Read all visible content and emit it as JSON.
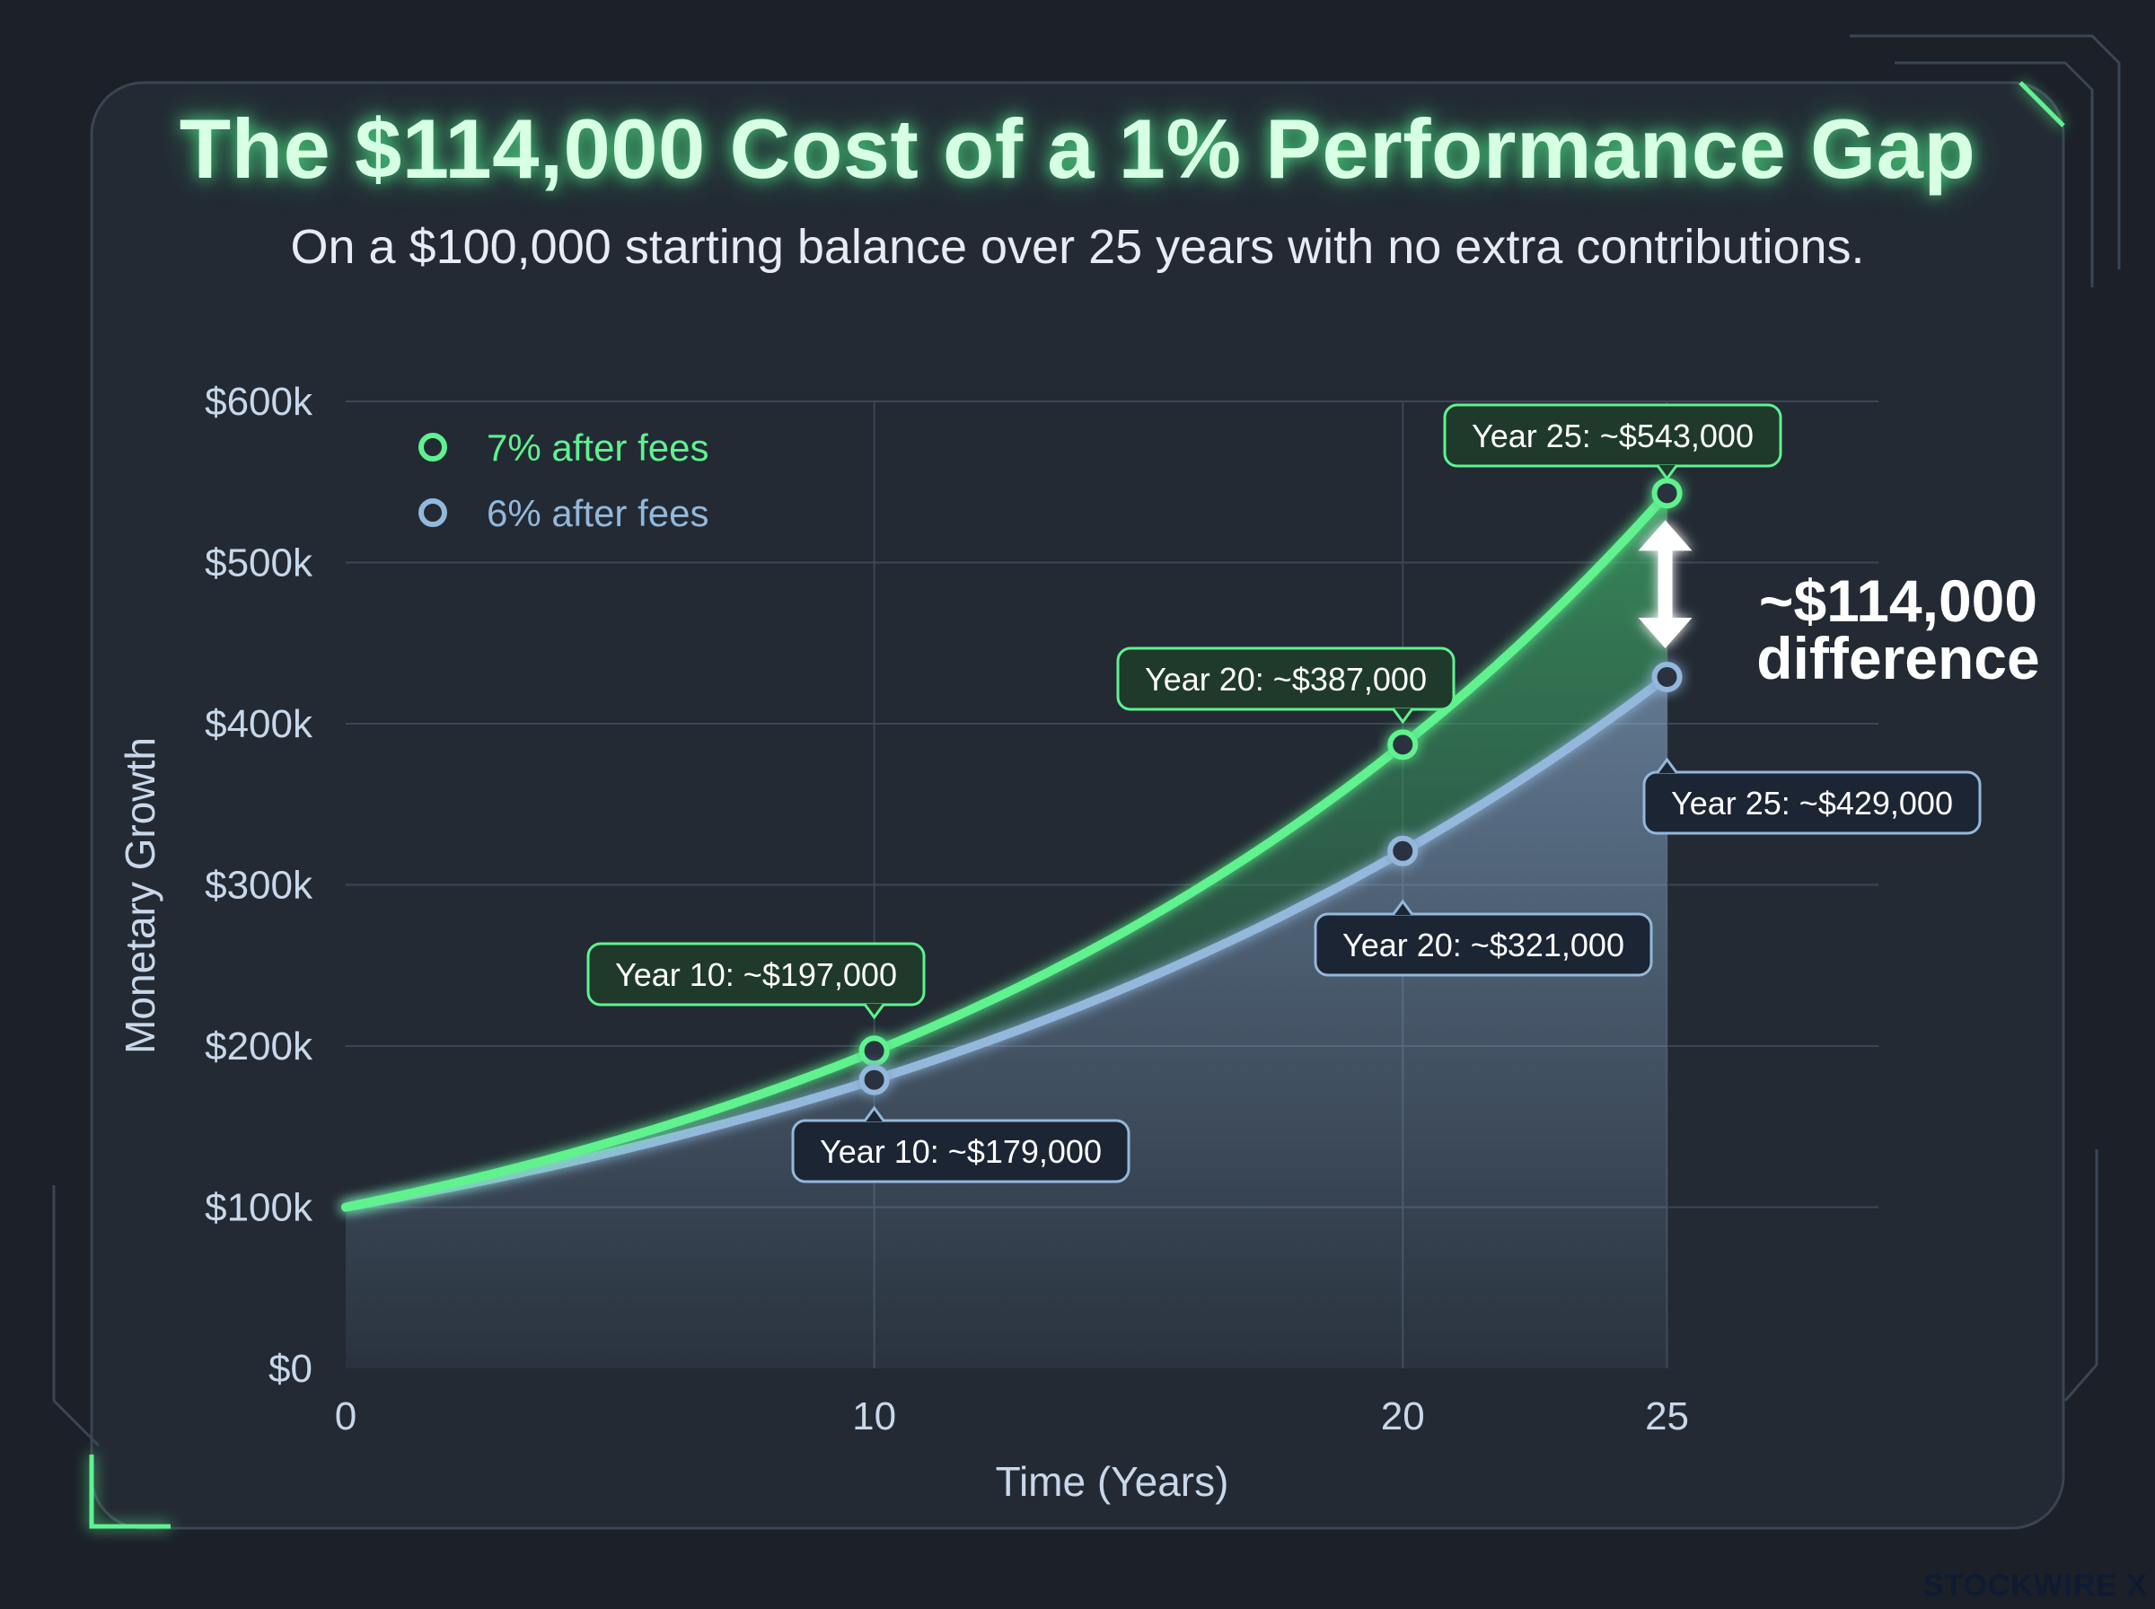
{
  "title": "The $114,000 Cost of a 1% Performance Gap",
  "subtitle": "On a $100,000 starting balance over 25 years with no extra contributions.",
  "brand": "STOCKWIRE X",
  "colors": {
    "background": "#1b2029",
    "panel": "#262c36",
    "series_7": "#5ef28f",
    "series_6": "#93b8dc",
    "grid": "#3c4654"
  },
  "chart_data": {
    "type": "line",
    "xlabel": "Time (Years)",
    "ylabel": "Monetary Growth",
    "xlim": [
      0,
      29
    ],
    "ylim": [
      0,
      600000
    ],
    "x_ticks": [
      0,
      10,
      20,
      25
    ],
    "y_ticks": [
      {
        "value": 0,
        "label": "$0"
      },
      {
        "value": 100000,
        "label": "$100k"
      },
      {
        "value": 200000,
        "label": "$200k"
      },
      {
        "value": 300000,
        "label": "$300k"
      },
      {
        "value": 400000,
        "label": "$400k"
      },
      {
        "value": 500000,
        "label": "$500k"
      },
      {
        "value": 600000,
        "label": "$600k"
      }
    ],
    "grid": true,
    "legend_position": "top-left",
    "series": [
      {
        "name": "7% after fees",
        "rate": 0.07,
        "color": "#5ef28f",
        "start": 100000,
        "markers": [
          {
            "x": 10,
            "y": 197000,
            "label": "Year 10: ~$197,000"
          },
          {
            "x": 20,
            "y": 387000,
            "label": "Year 20: ~$387,000"
          },
          {
            "x": 25,
            "y": 543000,
            "label": "Year 25: ~$543,000"
          }
        ]
      },
      {
        "name": "6% after fees",
        "rate": 0.06,
        "color": "#93b8dc",
        "start": 100000,
        "markers": [
          {
            "x": 10,
            "y": 179000,
            "label": "Year 10: ~$179,000"
          },
          {
            "x": 20,
            "y": 321000,
            "label": "Year 20: ~$321,000"
          },
          {
            "x": 25,
            "y": 429000,
            "label": "Year 25: ~$429,000"
          }
        ]
      }
    ],
    "annotation": {
      "x": 25,
      "line1": "~$114,000",
      "line2": "difference"
    }
  }
}
